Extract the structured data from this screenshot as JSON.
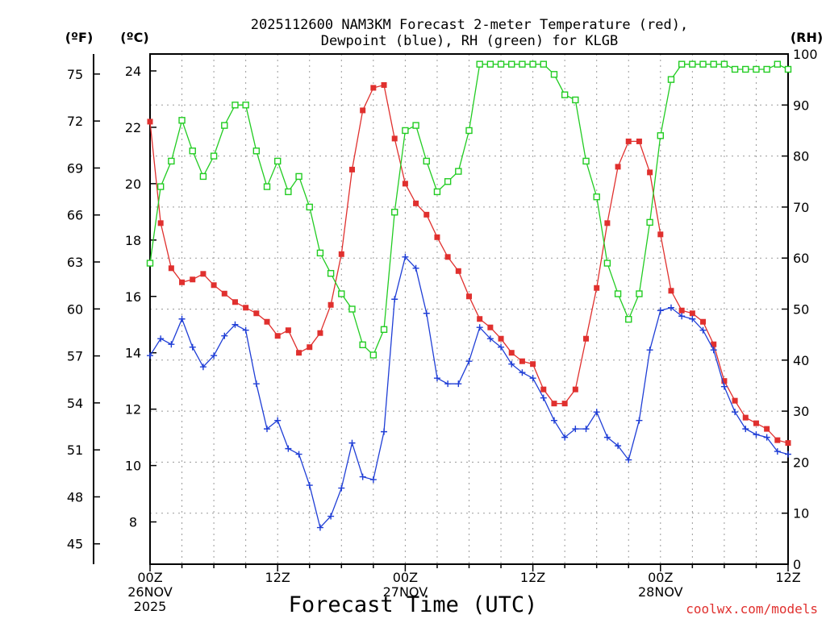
{
  "chart_data": {
    "type": "line",
    "title_line1": "2025112600 NAM3KM Forecast 2-meter Temperature (red),",
    "title_line2": "Dewpoint (blue), RH (green) for KLGB",
    "xlabel": "Forecast Time (UTC)",
    "credit": "coolwx.com/models",
    "units": {
      "fahrenheit": "(ºF)",
      "celsius": "(ºC)",
      "rh": "(RH)"
    },
    "x_hours_range": [
      0,
      60
    ],
    "celsius_range": [
      6.5,
      24.6
    ],
    "rh_range": [
      0,
      100
    ],
    "x_ticks": [
      {
        "hour": 0,
        "line1": "00Z",
        "line2": "26NOV",
        "line3": "2025"
      },
      {
        "hour": 12,
        "line1": "12Z",
        "line2": "",
        "line3": ""
      },
      {
        "hour": 24,
        "line1": "00Z",
        "line2": "27NOV",
        "line3": ""
      },
      {
        "hour": 36,
        "line1": "12Z",
        "line2": "",
        "line3": ""
      },
      {
        "hour": 48,
        "line1": "00Z",
        "line2": "28NOV",
        "line3": ""
      },
      {
        "hour": 60,
        "line1": "12Z",
        "line2": "",
        "line3": ""
      }
    ],
    "celsius_ticks": [
      "8",
      "10",
      "12",
      "14",
      "16",
      "18",
      "20",
      "22",
      "24"
    ],
    "fahrenheit_ticks": [
      "45",
      "48",
      "51",
      "54",
      "57",
      "60",
      "63",
      "66",
      "69",
      "72",
      "75"
    ],
    "rh_ticks": [
      "0",
      "10",
      "20",
      "30",
      "40",
      "50",
      "60",
      "70",
      "80",
      "90",
      "100"
    ],
    "hours": [
      0,
      1,
      2,
      3,
      4,
      5,
      6,
      7,
      8,
      9,
      10,
      11,
      12,
      13,
      14,
      15,
      16,
      17,
      18,
      19,
      20,
      21,
      22,
      23,
      24,
      25,
      26,
      27,
      28,
      29,
      30,
      31,
      32,
      33,
      34,
      35,
      36,
      37,
      38,
      39,
      40,
      41,
      42,
      43,
      44,
      45,
      46,
      47,
      48,
      49,
      50,
      51,
      52,
      53,
      54,
      55,
      56,
      57,
      58,
      59,
      60
    ],
    "series": [
      {
        "name": "2-meter Temperature (°C)",
        "color": "#e0302e",
        "marker": "filled-square",
        "axis": "celsius",
        "values": [
          22.2,
          18.6,
          17.0,
          16.5,
          16.6,
          16.8,
          16.4,
          16.1,
          15.8,
          15.6,
          15.4,
          15.1,
          14.6,
          14.8,
          14.0,
          14.2,
          14.7,
          15.7,
          17.5,
          20.5,
          22.6,
          23.4,
          23.5,
          21.6,
          20.0,
          19.3,
          18.9,
          18.1,
          17.4,
          16.9,
          16.0,
          15.2,
          14.9,
          14.5,
          14.0,
          13.7,
          13.6,
          12.7,
          12.2,
          12.2,
          12.7,
          14.5,
          16.3,
          18.6,
          20.6,
          21.5,
          21.5,
          20.4,
          18.2,
          16.2,
          15.5,
          15.4,
          15.1,
          14.3,
          13.0,
          12.3,
          11.7,
          11.5,
          11.3,
          10.9,
          10.8
        ]
      },
      {
        "name": "Dewpoint (°C)",
        "color": "#1f3ed6",
        "marker": "plus",
        "axis": "celsius",
        "values": [
          13.9,
          14.5,
          14.3,
          15.2,
          14.2,
          13.5,
          13.9,
          14.6,
          15.0,
          14.8,
          12.9,
          11.3,
          11.6,
          10.6,
          10.4,
          9.3,
          7.8,
          8.2,
          9.2,
          10.8,
          9.6,
          9.5,
          11.2,
          15.9,
          17.4,
          17.0,
          15.4,
          13.1,
          12.9,
          12.9,
          13.7,
          14.9,
          14.5,
          14.2,
          13.6,
          13.3,
          13.1,
          12.4,
          11.6,
          11.0,
          11.3,
          11.3,
          11.9,
          11.0,
          10.7,
          10.2,
          11.6,
          14.1,
          15.5,
          15.6,
          15.3,
          15.2,
          14.8,
          14.1,
          12.8,
          11.9,
          11.3,
          11.1,
          11.0,
          10.5,
          10.4
        ]
      },
      {
        "name": "RH (%)",
        "color": "#22cc22",
        "marker": "open-square",
        "axis": "rh",
        "values": [
          59,
          74,
          79,
          87,
          81,
          76,
          80,
          86,
          90,
          90,
          81,
          74,
          79,
          73,
          76,
          70,
          61,
          57,
          53,
          50,
          43,
          41,
          46,
          69,
          85,
          86,
          79,
          73,
          75,
          77,
          85,
          98,
          98,
          98,
          98,
          98,
          98,
          98,
          96,
          92,
          91,
          79,
          72,
          59,
          53,
          48,
          53,
          67,
          84,
          95,
          98,
          98,
          98,
          98,
          98,
          97,
          97,
          97,
          97,
          98,
          97
        ]
      }
    ]
  }
}
